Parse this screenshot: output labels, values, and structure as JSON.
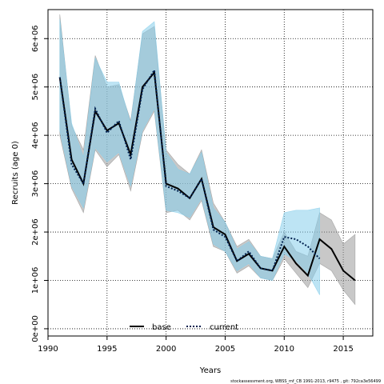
{
  "chart_data": {
    "type": "line",
    "xlabel": "Years",
    "ylabel": "Recruits (age 0)",
    "xlim": [
      1990,
      2017.5
    ],
    "ylim": [
      -150000,
      6600000
    ],
    "x_ticks": [
      1990,
      1995,
      2000,
      2005,
      2010,
      2015
    ],
    "y_ticks": [
      0,
      1000000,
      2000000,
      3000000,
      4000000,
      5000000,
      6000000
    ],
    "y_tick_labels": [
      "0e+00",
      "1e+06",
      "2e+06",
      "3e+06",
      "4e+06",
      "5e+06",
      "6e+06"
    ],
    "grid": true,
    "legend_position": "bottom-center",
    "series": [
      {
        "name": "base",
        "style": "solid",
        "line_color": "#000000",
        "band_color": "#9a9a9a",
        "x": [
          1991,
          1992,
          1993,
          1994,
          1995,
          1996,
          1997,
          1998,
          1999,
          2000,
          2001,
          2002,
          2003,
          2004,
          2005,
          2006,
          2007,
          2008,
          2009,
          2010,
          2011,
          2012,
          2013,
          2014,
          2015,
          2016
        ],
        "values": [
          5200000,
          3500000,
          3000000,
          4500000,
          4100000,
          4250000,
          3600000,
          5000000,
          5300000,
          3000000,
          2900000,
          2700000,
          3100000,
          2100000,
          1950000,
          1400000,
          1550000,
          1250000,
          1200000,
          1700000,
          1350000,
          1100000,
          1850000,
          1650000,
          1200000,
          1000000
        ],
        "lower": [
          4000000,
          2900000,
          2400000,
          3700000,
          3350000,
          3600000,
          2850000,
          4050000,
          4500000,
          2400000,
          2450000,
          2250000,
          2650000,
          1700000,
          1600000,
          1150000,
          1300000,
          1050000,
          1000000,
          1450000,
          1150000,
          850000,
          1350000,
          1200000,
          800000,
          500000
        ],
        "upper": [
          6500000,
          4200000,
          3700000,
          5650000,
          5000000,
          5050000,
          4300000,
          6100000,
          6250000,
          3700000,
          3400000,
          3200000,
          3700000,
          2600000,
          2200000,
          1700000,
          1850000,
          1500000,
          1450000,
          2000000,
          1600000,
          1500000,
          2400000,
          2250000,
          1750000,
          1950000
        ]
      },
      {
        "name": "current",
        "style": "dotted",
        "line_color": "#00204f",
        "band_color": "#87ceeb",
        "x": [
          1991,
          1992,
          1993,
          1994,
          1995,
          1996,
          1997,
          1998,
          1999,
          2000,
          2001,
          2002,
          2003,
          2004,
          2005,
          2006,
          2007,
          2008,
          2009,
          2010,
          2011,
          2012,
          2013
        ],
        "values": [
          5200000,
          3400000,
          3000000,
          4550000,
          4050000,
          4300000,
          3500000,
          4950000,
          5350000,
          2950000,
          2850000,
          2700000,
          3100000,
          2050000,
          1900000,
          1400000,
          1600000,
          1250000,
          1200000,
          1900000,
          1850000,
          1700000,
          1450000
        ],
        "lower": [
          4100000,
          2950000,
          2500000,
          3750000,
          3450000,
          3650000,
          2950000,
          4100000,
          4550000,
          2450000,
          2400000,
          2300000,
          2700000,
          1750000,
          1600000,
          1200000,
          1350000,
          1050000,
          1000000,
          1550000,
          1400000,
          1150000,
          700000
        ],
        "upper": [
          6400000,
          4250000,
          3550000,
          5600000,
          5100000,
          5100000,
          4250000,
          6150000,
          6350000,
          3650000,
          3300000,
          3200000,
          3650000,
          2500000,
          2200000,
          1650000,
          1800000,
          1500000,
          1450000,
          2400000,
          2450000,
          2450000,
          2500000
        ]
      }
    ]
  },
  "footer_text": "stockassessment.org, WBSS_mf_CB 1991-2013, r9475 , git: 792ca3e56499"
}
